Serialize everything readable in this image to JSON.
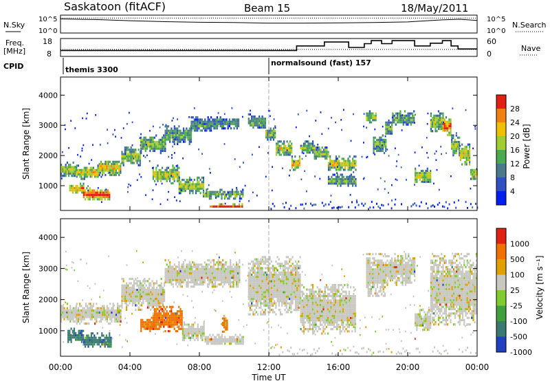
{
  "header": {
    "station": "Saskatoon (fitACF)",
    "beam": "Beam 15",
    "date": "18/May/2011"
  },
  "nsky_panel": {
    "left_label": "N.Sky",
    "right_label": "N.Search",
    "left_ticks": [
      "10^5",
      "10^0"
    ],
    "right_ticks": [
      "10^5",
      "10^0"
    ]
  },
  "freq_panel": {
    "left_label_1": "Freq.",
    "left_label_2": "[MHz]",
    "left_ticks": [
      "18",
      "8"
    ],
    "right_ticks": [
      "60",
      "0"
    ],
    "right_label": "Nave"
  },
  "cpid": {
    "label": "CPID",
    "programs": [
      {
        "name": "themis 3300",
        "start_hour": 0
      },
      {
        "name": "normalsound (fast) 157",
        "start_hour": 12
      }
    ]
  },
  "chart_data": [
    {
      "type": "line",
      "name": "nsky_nsearch",
      "x_range_hours": [
        0,
        24
      ],
      "series": [
        {
          "name": "N.Sky",
          "x": [
            0,
            1,
            2,
            4,
            6,
            8,
            10,
            12,
            14,
            16,
            18,
            20,
            22,
            23,
            24
          ],
          "y_log10": [
            4.2,
            4.1,
            4.0,
            3.6,
            3.3,
            3.1,
            3.0,
            2.8,
            2.8,
            2.9,
            3.0,
            3.2,
            3.9,
            4.1,
            3.7
          ]
        },
        {
          "name": "N.Search",
          "x": [
            0,
            24
          ],
          "y_log10": [
            4.5,
            4.5
          ]
        }
      ]
    },
    {
      "type": "line",
      "name": "freq_nave",
      "x_range_hours": [
        0,
        24
      ],
      "series": [
        {
          "name": "Freq [MHz]",
          "x": [
            0,
            13.6,
            13.6,
            15.2,
            15.2,
            16.6,
            16.6,
            17.5,
            17.5,
            17.9,
            17.9,
            18.5,
            18.5,
            19.1,
            19.1,
            20.4,
            20.4,
            21.3,
            21.3,
            22.0,
            22.0,
            22.5,
            22.5,
            22.9,
            22.9,
            24
          ],
          "y": [
            11,
            11,
            14,
            14,
            16.6,
            16.6,
            13,
            13,
            15.5,
            15.5,
            17.5,
            17.5,
            15.5,
            15.5,
            17.5,
            17.5,
            14,
            14,
            15.8,
            15.8,
            17.5,
            17.5,
            14,
            14,
            12,
            12
          ]
        },
        {
          "name": "Nave",
          "x": [
            0,
            24
          ],
          "y": [
            22,
            22
          ]
        }
      ]
    },
    {
      "type": "heatmap",
      "name": "power",
      "xlabel": "",
      "ylabel": "Slant Range [km]",
      "x_range_hours": [
        0,
        24
      ],
      "ylim_km": [
        180,
        4600
      ],
      "y_ticks": [
        1000,
        2000,
        3000,
        4000
      ],
      "colorbar": {
        "label": "Power [dB]",
        "range": [
          0,
          30
        ],
        "ticks": [
          4,
          8,
          12,
          16,
          20,
          24,
          28
        ],
        "colors": [
          "#0020f0",
          "#3050c0",
          "#4a7a8a",
          "#4aaa50",
          "#a0cc30",
          "#f0c000",
          "#f08010",
          "#e02010"
        ]
      },
      "regions": [
        {
          "x0": 0.0,
          "x1": 0.9,
          "y0": 1300,
          "y1": 1800,
          "level": 0.5
        },
        {
          "x0": 0.9,
          "x1": 2.2,
          "y0": 1250,
          "y1": 1700,
          "level": 0.6
        },
        {
          "x0": 2.2,
          "x1": 3.5,
          "y0": 1350,
          "y1": 1900,
          "level": 0.6
        },
        {
          "x0": 3.5,
          "x1": 4.6,
          "y0": 1700,
          "y1": 2300,
          "level": 0.5
        },
        {
          "x0": 4.6,
          "x1": 6.0,
          "y0": 2100,
          "y1": 2700,
          "level": 0.45
        },
        {
          "x0": 6.0,
          "x1": 7.5,
          "y0": 2400,
          "y1": 3000,
          "level": 0.4
        },
        {
          "x0": 7.5,
          "x1": 9.0,
          "y0": 2800,
          "y1": 3300,
          "level": 0.35
        },
        {
          "x0": 9.0,
          "x1": 10.3,
          "y0": 2900,
          "y1": 3300,
          "level": 0.3
        },
        {
          "x0": 0.5,
          "x1": 1.3,
          "y0": 750,
          "y1": 1100,
          "level": 0.7
        },
        {
          "x0": 1.3,
          "x1": 2.8,
          "y0": 550,
          "y1": 950,
          "level": 0.85
        },
        {
          "x0": 5.3,
          "x1": 6.8,
          "y0": 1100,
          "y1": 1700,
          "level": 0.55
        },
        {
          "x0": 6.8,
          "x1": 8.2,
          "y0": 750,
          "y1": 1300,
          "level": 0.5
        },
        {
          "x0": 8.2,
          "x1": 10.5,
          "y0": 600,
          "y1": 900,
          "level": 0.45
        },
        {
          "x0": 8.6,
          "x1": 10.5,
          "y0": 300,
          "y1": 420,
          "level": 0.95
        },
        {
          "x0": 10.8,
          "x1": 11.8,
          "y0": 2900,
          "y1": 3400,
          "level": 0.4
        },
        {
          "x0": 11.8,
          "x1": 12.4,
          "y0": 2500,
          "y1": 3000,
          "level": 0.45
        },
        {
          "x0": 12.4,
          "x1": 13.3,
          "y0": 2000,
          "y1": 2500,
          "level": 0.55
        },
        {
          "x0": 13.3,
          "x1": 13.8,
          "y0": 1500,
          "y1": 2000,
          "level": 0.65
        },
        {
          "x0": 13.8,
          "x1": 14.6,
          "y0": 2100,
          "y1": 2500,
          "level": 0.45
        },
        {
          "x0": 14.6,
          "x1": 15.4,
          "y0": 1900,
          "y1": 2300,
          "level": 0.5
        },
        {
          "x0": 15.4,
          "x1": 17.0,
          "y0": 1500,
          "y1": 2000,
          "level": 0.55
        },
        {
          "x0": 15.4,
          "x1": 17.0,
          "y0": 1000,
          "y1": 1400,
          "level": 0.4
        },
        {
          "x0": 17.6,
          "x1": 18.2,
          "y0": 3100,
          "y1": 3500,
          "level": 0.5
        },
        {
          "x0": 18.0,
          "x1": 18.7,
          "y0": 2100,
          "y1": 2700,
          "level": 0.4
        },
        {
          "x0": 18.7,
          "x1": 19.1,
          "y0": 2700,
          "y1": 3200,
          "level": 0.45
        },
        {
          "x0": 19.1,
          "x1": 20.4,
          "y0": 3000,
          "y1": 3500,
          "level": 0.4
        },
        {
          "x0": 20.4,
          "x1": 21.3,
          "y0": 1100,
          "y1": 1600,
          "level": 0.55
        },
        {
          "x0": 21.3,
          "x1": 22.0,
          "y0": 2800,
          "y1": 3500,
          "level": 0.5
        },
        {
          "x0": 22.0,
          "x1": 22.5,
          "y0": 2700,
          "y1": 3300,
          "level": 0.75
        },
        {
          "x0": 22.5,
          "x1": 23.0,
          "y0": 2000,
          "y1": 2700,
          "level": 0.5
        },
        {
          "x0": 23.0,
          "x1": 23.6,
          "y0": 1700,
          "y1": 2400,
          "level": 0.6
        },
        {
          "x0": 23.6,
          "x1": 24.0,
          "y0": 1200,
          "y1": 1700,
          "level": 0.55
        }
      ]
    },
    {
      "type": "heatmap",
      "name": "velocity",
      "xlabel": "Time UT",
      "ylabel": "Slant Range [km]",
      "x_range_hours": [
        0,
        24
      ],
      "ylim_km": [
        180,
        4600
      ],
      "y_ticks": [
        1000,
        2000,
        3000,
        4000
      ],
      "x_ticks": [
        "00:00",
        "04:00",
        "08:00",
        "12:00",
        "16:00",
        "20:00",
        "00:00"
      ],
      "colorbar": {
        "label": "Velocity [m s⁻¹]",
        "ticks": [
          "1000",
          "500",
          "100",
          "25",
          "-25",
          "-100",
          "-500",
          "-1000"
        ],
        "colors": [
          "#2040c0",
          "#3a7a70",
          "#40a040",
          "#80cc30",
          "#c8c8c0",
          "#e0a000",
          "#f07000",
          "#e02010"
        ]
      },
      "regions": [
        {
          "x0": 0.0,
          "x1": 0.9,
          "y0": 1300,
          "y1": 1900,
          "vcls": 4
        },
        {
          "x0": 0.9,
          "x1": 3.5,
          "y0": 1250,
          "y1": 1900,
          "vcls": 4
        },
        {
          "x0": 3.5,
          "x1": 6.0,
          "y0": 1700,
          "y1": 2700,
          "vcls": 4
        },
        {
          "x0": 6.0,
          "x1": 10.3,
          "y0": 2400,
          "y1": 3300,
          "vcls": 4
        },
        {
          "x0": 0.4,
          "x1": 1.3,
          "y0": 650,
          "y1": 1100,
          "vcls": 1
        },
        {
          "x0": 1.3,
          "x1": 2.9,
          "y0": 500,
          "y1": 950,
          "vcls": 1
        },
        {
          "x0": 4.6,
          "x1": 5.3,
          "y0": 1000,
          "y1": 1450,
          "vcls": 6
        },
        {
          "x0": 5.3,
          "x1": 7.0,
          "y0": 1000,
          "y1": 1800,
          "vcls": 6
        },
        {
          "x0": 7.0,
          "x1": 8.3,
          "y0": 700,
          "y1": 1300,
          "vcls": 4
        },
        {
          "x0": 8.3,
          "x1": 10.5,
          "y0": 550,
          "y1": 900,
          "vcls": 4
        },
        {
          "x0": 9.3,
          "x1": 9.6,
          "y0": 1000,
          "y1": 1500,
          "vcls": 6
        },
        {
          "x0": 10.8,
          "x1": 13.8,
          "y0": 1500,
          "y1": 3400,
          "vcls": 4
        },
        {
          "x0": 13.8,
          "x1": 17.0,
          "y0": 900,
          "y1": 2500,
          "vcls": 4
        },
        {
          "x0": 17.6,
          "x1": 18.7,
          "y0": 2100,
          "y1": 3500,
          "vcls": 4
        },
        {
          "x0": 18.7,
          "x1": 20.4,
          "y0": 2500,
          "y1": 3500,
          "vcls": 4
        },
        {
          "x0": 20.4,
          "x1": 21.3,
          "y0": 1000,
          "y1": 1700,
          "vcls": 4
        },
        {
          "x0": 21.3,
          "x1": 24.0,
          "y0": 1200,
          "y1": 3500,
          "vcls": 4
        }
      ]
    }
  ]
}
